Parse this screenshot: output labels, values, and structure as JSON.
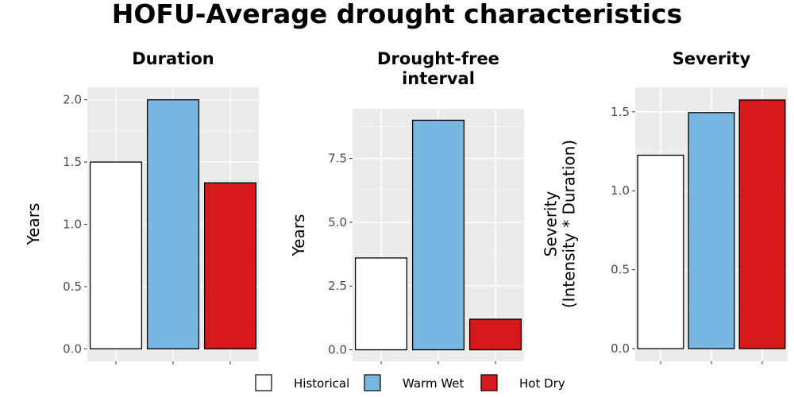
{
  "title": "HOFU-Average drought characteristics",
  "legend": [
    {
      "label": "Historical",
      "color": "#ffffff"
    },
    {
      "label": "Warm Wet",
      "color": "#78b7e2"
    },
    {
      "label": "Hot Dry",
      "color": "#d7191c"
    }
  ],
  "chart_data": [
    {
      "type": "bar",
      "title": [
        "Duration"
      ],
      "ylabel": [
        "Years"
      ],
      "categories": [
        "Historical",
        "Warm Wet",
        "Hot Dry"
      ],
      "values": [
        1.5,
        2.0,
        1.333
      ],
      "colors": [
        "#ffffff",
        "#78b7e2",
        "#d7191c"
      ],
      "ylim": [
        -0.1,
        2.1
      ],
      "yticks": [
        0,
        0.5,
        1.0,
        1.5,
        2.0
      ],
      "ytick_labels": [
        "0.0",
        "0.5",
        "1.0",
        "1.5",
        "2.0"
      ],
      "grid": true,
      "legend": "bottom"
    },
    {
      "type": "bar",
      "title": [
        "Drought-free",
        "interval"
      ],
      "ylabel": [
        "Years"
      ],
      "categories": [
        "Historical",
        "Warm Wet",
        "Hot Dry"
      ],
      "values": [
        3.6,
        9.0,
        1.2
      ],
      "colors": [
        "#ffffff",
        "#78b7e2",
        "#d7191c"
      ],
      "ylim": [
        -0.45,
        9.45
      ],
      "yticks": [
        0,
        2.5,
        5.0,
        7.5
      ],
      "ytick_labels": [
        "0.0",
        "2.5",
        "5.0",
        "7.5"
      ],
      "grid": true,
      "legend": "bottom"
    },
    {
      "type": "bar",
      "title": [
        "Severity"
      ],
      "ylabel": [
        "Severity",
        "(Intensity * Duration)"
      ],
      "categories": [
        "Historical",
        "Warm Wet",
        "Hot Dry"
      ],
      "values": [
        1.225,
        1.495,
        1.575
      ],
      "colors": [
        "#ffffff",
        "#78b7e2",
        "#d7191c"
      ],
      "ylim": [
        -0.08,
        1.655
      ],
      "yticks": [
        0,
        0.5,
        1.0,
        1.5
      ],
      "ytick_labels": [
        "0.0",
        "0.5",
        "1.0",
        "1.5"
      ],
      "grid": true,
      "legend": "bottom"
    }
  ]
}
